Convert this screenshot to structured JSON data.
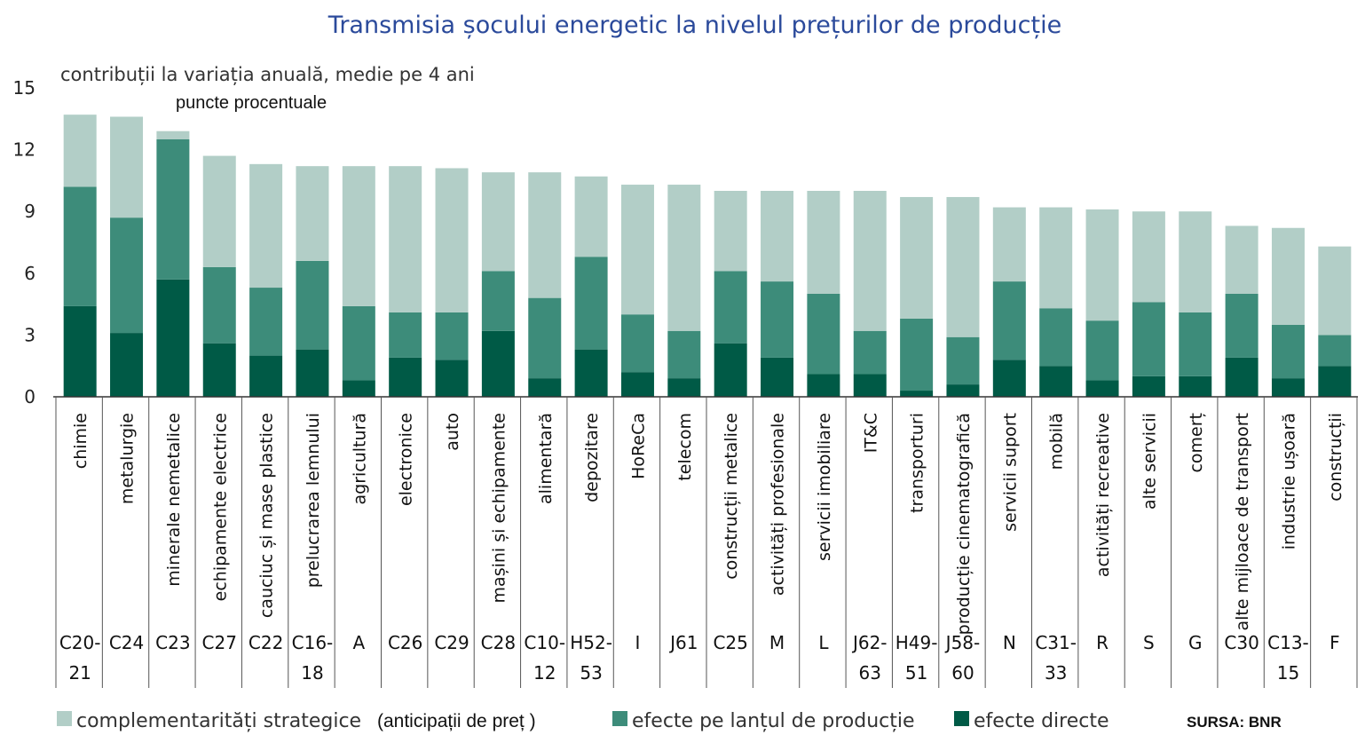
{
  "chart_data": {
    "type": "bar",
    "stacked": true,
    "title": "Transmisia  șocului energetic la nivelul prețurilor  de producție",
    "subtitle": "contribuții la variația anuală, medie pe 4 ani",
    "ylabel": "puncte procentuale",
    "ylim": [
      0,
      15
    ],
    "yticks": [
      "0",
      "3",
      "6",
      "9",
      "12",
      "15"
    ],
    "grid": false,
    "legend_position": "bottom",
    "categories": [
      "chimie",
      "metalurgie",
      "minerale nemetalice",
      "echipamente electrice",
      "cauciuc și mase plastice",
      "prelucrarea lemnului",
      "agricultură",
      "electronice",
      "auto",
      "mașini și echipamente",
      "alimentară",
      "depozitare",
      "HoReCa",
      "telecom",
      "construcții metalice",
      "activități profesionale",
      "servicii imobiliare",
      "IT&C",
      "transporturi",
      "producție cinematografică",
      "servicii suport",
      "mobilă",
      "activități recreative",
      "alte servicii",
      "comerț",
      "alte mijloace de transport",
      "industrie ușoară",
      "construcții"
    ],
    "codes": [
      [
        "C20-",
        "21"
      ],
      [
        "C24"
      ],
      [
        "C23"
      ],
      [
        "C27"
      ],
      [
        "C22"
      ],
      [
        "C16-",
        "18"
      ],
      [
        "A"
      ],
      [
        "C26"
      ],
      [
        "C29"
      ],
      [
        "C28"
      ],
      [
        "C10-",
        "12"
      ],
      [
        "H52-",
        "53"
      ],
      [
        "I"
      ],
      [
        "J61"
      ],
      [
        "C25"
      ],
      [
        "M"
      ],
      [
        "L"
      ],
      [
        "J62-",
        "63"
      ],
      [
        "H49-",
        "51"
      ],
      [
        "J58-",
        "60"
      ],
      [
        "N"
      ],
      [
        "C31-",
        "33"
      ],
      [
        "R"
      ],
      [
        "S"
      ],
      [
        "G"
      ],
      [
        "C30"
      ],
      [
        "C13-",
        "15"
      ],
      [
        "F"
      ]
    ],
    "series": [
      {
        "name": "efecte directe",
        "color": "#005a46",
        "values": [
          4.4,
          3.1,
          5.7,
          2.6,
          2.0,
          2.3,
          0.8,
          1.9,
          1.8,
          3.2,
          0.9,
          2.3,
          1.2,
          0.9,
          2.6,
          1.9,
          1.1,
          1.1,
          0.3,
          0.6,
          1.8,
          1.5,
          0.8,
          1.0,
          1.0,
          1.9,
          0.9,
          1.5
        ]
      },
      {
        "name": "efecte pe lanțul de producție",
        "color": "#3d8c7a",
        "values": [
          5.8,
          5.6,
          6.8,
          3.7,
          3.3,
          4.3,
          3.6,
          2.2,
          2.3,
          2.9,
          3.9,
          4.5,
          2.8,
          2.3,
          3.5,
          3.7,
          3.9,
          2.1,
          3.5,
          2.3,
          3.8,
          2.8,
          2.9,
          3.6,
          3.1,
          3.1,
          2.6,
          1.5
        ]
      },
      {
        "name": "complementarități strategice",
        "color": "#b2cec7",
        "values": [
          3.5,
          4.9,
          0.4,
          5.4,
          6.0,
          4.6,
          6.8,
          7.1,
          7.0,
          4.8,
          6.1,
          3.9,
          6.3,
          7.1,
          3.9,
          4.4,
          5.0,
          6.8,
          5.9,
          6.8,
          3.6,
          4.9,
          5.4,
          4.4,
          4.9,
          3.3,
          4.7,
          4.3
        ]
      }
    ],
    "legend": {
      "complementary": "complementarități strategice",
      "note": "(anticipații de preț )",
      "chain": "efecte pe lanțul de producție",
      "direct": "efecte directe"
    },
    "source": "SURSA: BNR"
  }
}
